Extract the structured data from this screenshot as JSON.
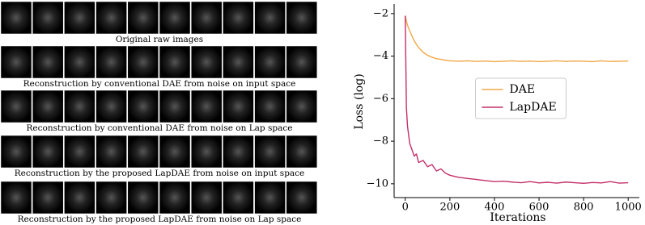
{
  "image_panel": {
    "captions": [
      "Original raw images",
      "Reconstruction by conventional DAE from noise on input space",
      "Reconstruction by conventional DAE from noise on Lap space",
      "Reconstruction by the proposed LapDAE from noise on input space",
      "Reconstruction by the proposed LapDAE from noise on Lap space"
    ]
  },
  "chart_data": {
    "type": "line",
    "x_label": "Iterations",
    "y_label": "Loss (log)",
    "x": [
      0,
      5,
      10,
      20,
      30,
      40,
      50,
      60,
      80,
      100,
      120,
      140,
      160,
      180,
      200,
      240,
      280,
      320,
      360,
      400,
      440,
      480,
      520,
      560,
      600,
      640,
      680,
      720,
      760,
      800,
      840,
      880,
      920,
      960,
      1000
    ],
    "series": [
      {
        "name": "DAE",
        "color": "#f0a848",
        "values": [
          -2.1,
          -2.35,
          -2.55,
          -2.82,
          -3.05,
          -3.27,
          -3.45,
          -3.6,
          -3.82,
          -3.96,
          -4.05,
          -4.12,
          -4.15,
          -4.19,
          -4.22,
          -4.24,
          -4.22,
          -4.25,
          -4.23,
          -4.26,
          -4.24,
          -4.22,
          -4.25,
          -4.23,
          -4.26,
          -4.24,
          -4.22,
          -4.25,
          -4.23,
          -4.24,
          -4.26,
          -4.22,
          -4.25,
          -4.24,
          -4.23
        ]
      },
      {
        "name": "LapDAE",
        "color": "#c4306a",
        "values": [
          -2.1,
          -6.4,
          -7.3,
          -8.1,
          -8.4,
          -8.7,
          -8.6,
          -9.0,
          -8.9,
          -9.2,
          -9.1,
          -9.4,
          -9.3,
          -9.5,
          -9.6,
          -9.7,
          -9.75,
          -9.8,
          -9.85,
          -9.9,
          -9.88,
          -9.92,
          -9.95,
          -9.9,
          -9.96,
          -9.93,
          -9.97,
          -9.92,
          -9.95,
          -9.98,
          -9.94,
          -9.96,
          -9.9,
          -9.97,
          -9.95
        ]
      }
    ],
    "xlim": [
      -50,
      1050
    ],
    "xticks": [
      0,
      200,
      400,
      600,
      800,
      1000
    ],
    "ylim": [
      -10.65,
      -1.55
    ],
    "yticks": [
      {
        "value": -10,
        "label": "−10"
      },
      {
        "value": -8,
        "label": "−8"
      },
      {
        "value": -6,
        "label": "−6"
      },
      {
        "value": -4,
        "label": "−4"
      },
      {
        "value": -2,
        "label": "−2"
      }
    ],
    "legend": "center"
  }
}
